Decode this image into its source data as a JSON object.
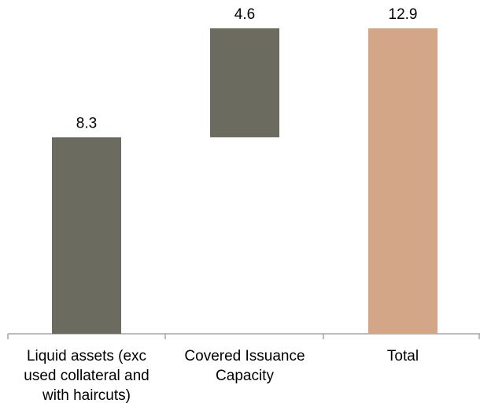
{
  "chart_data": {
    "type": "bar",
    "subtype": "waterfall",
    "categories": [
      [
        "Liquid assets (exc",
        "used collateral and",
        "with haircuts)"
      ],
      [
        "Covered Issuance",
        "Capacity"
      ],
      [
        "Total"
      ]
    ],
    "bars": [
      {
        "base": 0,
        "value": 8.3,
        "label": "8.3",
        "color": "#6b6b60"
      },
      {
        "base": 8.3,
        "value": 4.6,
        "label": "4.6",
        "color": "#6b6b60"
      },
      {
        "base": 0,
        "value": 12.9,
        "label": "12.9",
        "color": "#d2a686"
      }
    ],
    "ylim": [
      0,
      12.9
    ],
    "grid": false,
    "legend": "none",
    "axis_color": "#a6a6a6"
  }
}
